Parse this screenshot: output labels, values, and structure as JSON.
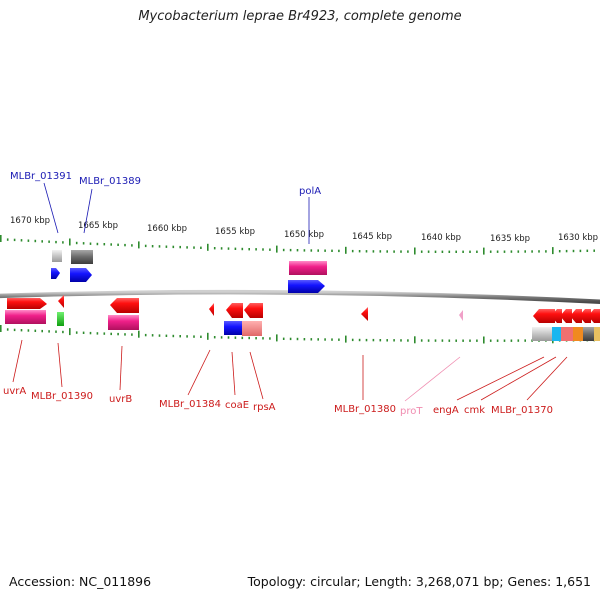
{
  "title": "Mycobacterium leprae Br4923, complete genome",
  "footer": {
    "accession": "Accession: NC_011896",
    "summary": "Topology: circular; Length: 3,268,071 bp; Genes: 1,651"
  },
  "colors": {
    "axis": "#808080",
    "tick": "#2e8b2e",
    "top_label": "#1b1bb4",
    "bottom_label": "#cc1b1b",
    "rna_label": "#f08cb0"
  },
  "scale_labels": [
    "1670 kbp",
    "1665 kbp",
    "1660 kbp",
    "1655 kbp",
    "1650 kbp",
    "1645 kbp",
    "1640 kbp",
    "1635 kbp",
    "1630 kbp"
  ],
  "top_gene_labels": [
    "MLBr_01391",
    "MLBr_01389",
    "polA"
  ],
  "bottom_gene_labels": [
    "uvrA",
    "MLBr_01390",
    "uvrB",
    "MLBr_01384",
    "coaE",
    "rpsA",
    "MLBr_01380",
    "proT",
    "engA",
    "cmk",
    "MLBr_01370"
  ]
}
